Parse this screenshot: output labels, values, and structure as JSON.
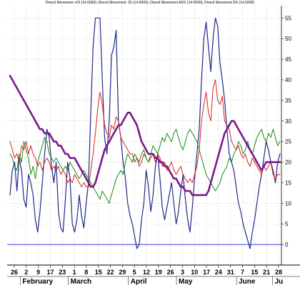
{
  "chart_data": {
    "type": "line",
    "title": "Directi Movement +DI (14.0000); Directi Movement -DI (14.0000); Directi Movement ADX (14.0000); Directi Movement DX (14.0000)",
    "xlabel": "",
    "ylabel": "",
    "ylim": [
      -5,
      58
    ],
    "y_ticks": [
      0,
      5,
      10,
      15,
      20,
      25,
      30,
      35,
      40,
      45,
      50,
      55
    ],
    "y_axis_position": "right",
    "grid": true,
    "legend": "none",
    "x_date_labels": [
      "26",
      "2",
      "9",
      "17",
      "23",
      "1",
      "8",
      "15",
      "22",
      "29",
      "5",
      "12",
      "19",
      "26",
      "3",
      "10",
      "17",
      "24",
      "31",
      "7",
      "15",
      "21",
      "28"
    ],
    "x_month_labels": [
      "February",
      "March",
      "April",
      "May",
      "June",
      "Ju"
    ],
    "zero_line": 0,
    "series": [
      {
        "color": "#1f2a8a",
        "stroke_width": 1.2,
        "values": [
          12,
          18,
          20,
          13,
          21,
          18,
          11,
          9,
          17,
          15,
          12,
          6,
          3,
          8,
          15,
          22,
          28,
          26,
          19,
          15,
          20,
          8,
          4,
          3,
          11,
          20,
          16,
          5,
          3,
          6,
          12,
          7,
          4,
          10,
          15,
          32,
          48,
          55,
          55,
          55,
          40,
          26,
          22,
          30,
          46,
          48,
          52,
          30,
          26,
          20,
          16,
          10,
          7,
          5,
          2,
          -1,
          0,
          6,
          10,
          18,
          14,
          8,
          12,
          19,
          22,
          16,
          9,
          6,
          9,
          12,
          15,
          10,
          5,
          8,
          13,
          17,
          11,
          6,
          3,
          9,
          16,
          22,
          28,
          40,
          50,
          54,
          48,
          42,
          50,
          55,
          53,
          44,
          40,
          35,
          28,
          22,
          20,
          18,
          14,
          10,
          8,
          5,
          3,
          1,
          -1,
          3,
          6,
          10,
          14,
          17,
          21,
          25,
          23,
          20,
          18,
          15,
          20,
          22
        ]
      },
      {
        "color": "#e02020",
        "stroke_width": 1.0,
        "values": [
          25,
          23,
          21,
          22,
          20,
          24,
          23,
          25,
          22,
          24,
          22,
          21,
          19,
          20,
          18,
          20,
          21,
          20,
          18,
          19,
          18,
          19,
          17,
          18,
          17,
          15,
          16,
          15,
          17,
          16,
          15,
          14,
          15,
          14,
          14,
          18,
          22,
          27,
          33,
          37,
          34,
          29,
          27,
          26,
          29,
          28,
          31,
          30,
          26,
          25,
          24,
          23,
          22,
          22,
          20,
          21,
          19,
          20,
          22,
          21,
          20,
          21,
          22,
          20,
          22,
          21,
          19,
          20,
          18,
          19,
          20,
          18,
          17,
          18,
          19,
          17,
          16,
          15,
          16,
          15,
          17,
          19,
          23,
          30,
          34,
          37,
          32,
          30,
          38,
          40,
          35,
          34,
          36,
          30,
          29,
          28,
          25,
          24,
          23,
          24,
          22,
          21,
          22,
          20,
          19,
          21,
          20,
          19,
          18,
          17,
          19,
          18,
          19,
          20,
          17,
          16,
          17,
          17
        ]
      },
      {
        "color": "#1a8a1a",
        "stroke_width": 1.0,
        "values": [
          22,
          21,
          19,
          18,
          22,
          20,
          25,
          23,
          21,
          17,
          19,
          16,
          20,
          22,
          24,
          26,
          25,
          22,
          21,
          20,
          21,
          20,
          19,
          18,
          19,
          18,
          20,
          19,
          18,
          17,
          16,
          17,
          18,
          17,
          16,
          15,
          14,
          13,
          12,
          11,
          13,
          12,
          11,
          10,
          12,
          14,
          16,
          17,
          18,
          17,
          20,
          22,
          21,
          20,
          22,
          21,
          20,
          22,
          23,
          21,
          20,
          22,
          24,
          23,
          22,
          24,
          26,
          25,
          27,
          26,
          25,
          27,
          28,
          26,
          24,
          23,
          25,
          27,
          28,
          27,
          26,
          25,
          23,
          21,
          19,
          17,
          16,
          15,
          14,
          13,
          14,
          15,
          17,
          18,
          19,
          21,
          20,
          22,
          23,
          25,
          24,
          22,
          23,
          25,
          23,
          22,
          24,
          26,
          27,
          28,
          26,
          25,
          27,
          26,
          28,
          26,
          24,
          25
        ]
      },
      {
        "color": "#7a1a8a",
        "stroke_width": 2.6,
        "values": [
          41,
          40,
          39,
          38,
          37,
          36,
          35,
          34,
          33,
          32,
          31,
          30,
          29,
          28,
          28,
          27,
          27,
          27,
          26,
          25,
          25,
          24,
          24,
          23,
          22,
          22,
          21,
          21,
          21,
          20,
          19,
          18,
          17,
          16,
          15,
          14,
          14,
          15,
          17,
          19,
          21,
          23,
          24,
          25,
          26,
          27,
          28,
          29,
          29,
          30,
          31,
          32,
          32,
          31,
          30,
          29,
          27,
          25,
          24,
          23,
          22,
          22,
          22,
          21,
          21,
          20,
          20,
          19,
          19,
          18,
          17,
          16,
          16,
          15,
          14,
          14,
          13,
          13,
          13,
          12,
          12,
          12,
          12,
          12,
          12,
          12,
          13,
          15,
          17,
          19,
          21,
          23,
          25,
          27,
          28,
          29,
          30,
          30,
          29,
          28,
          27,
          26,
          25,
          24,
          23,
          22,
          21,
          20,
          19,
          18,
          19,
          20,
          20,
          20,
          20,
          20,
          20,
          20
        ]
      }
    ]
  }
}
